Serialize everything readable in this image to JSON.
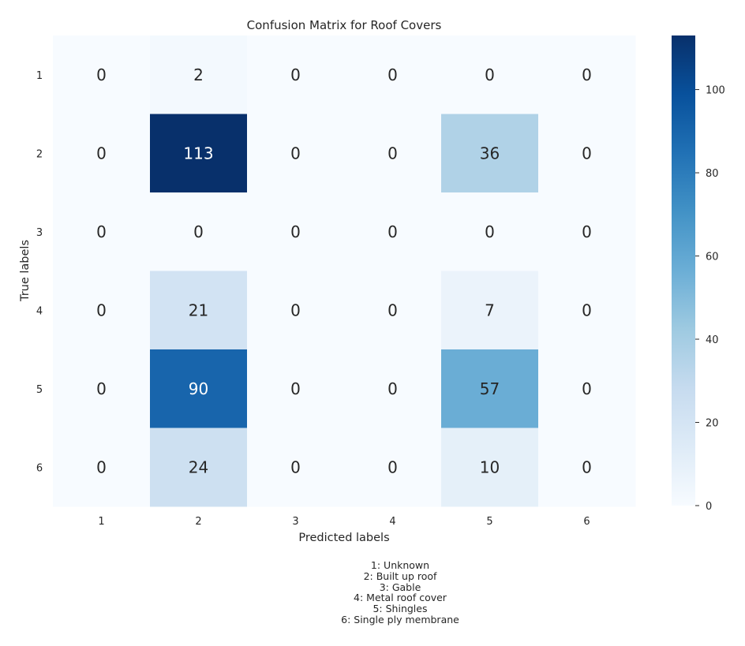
{
  "chart_data": {
    "type": "heatmap",
    "title": "Confusion Matrix for Roof Covers",
    "xlabel": "Predicted labels",
    "ylabel": "True labels",
    "x_categories": [
      "1",
      "2",
      "3",
      "4",
      "5",
      "6"
    ],
    "y_categories": [
      "1",
      "2",
      "3",
      "4",
      "5",
      "6"
    ],
    "values": [
      [
        0,
        2,
        0,
        0,
        0,
        0
      ],
      [
        0,
        113,
        0,
        0,
        36,
        0
      ],
      [
        0,
        0,
        0,
        0,
        0,
        0
      ],
      [
        0,
        21,
        0,
        0,
        7,
        0
      ],
      [
        0,
        90,
        0,
        0,
        57,
        0
      ],
      [
        0,
        24,
        0,
        0,
        10,
        0
      ]
    ],
    "colormap": "Blues",
    "colorbar": {
      "min": 0,
      "max": 113,
      "ticks": [
        0,
        20,
        40,
        60,
        80,
        100
      ]
    },
    "grid": false
  },
  "legend_lines": [
    "1: Unknown",
    "2: Built up roof",
    "3: Gable",
    "4: Metal roof cover",
    "5: Shingles",
    "6: Single ply membrane"
  ],
  "colors": {
    "text_dark": "#262626",
    "text_light": "#ffffff",
    "blues_low": "#f7fbff",
    "blues_high": "#08306b"
  }
}
